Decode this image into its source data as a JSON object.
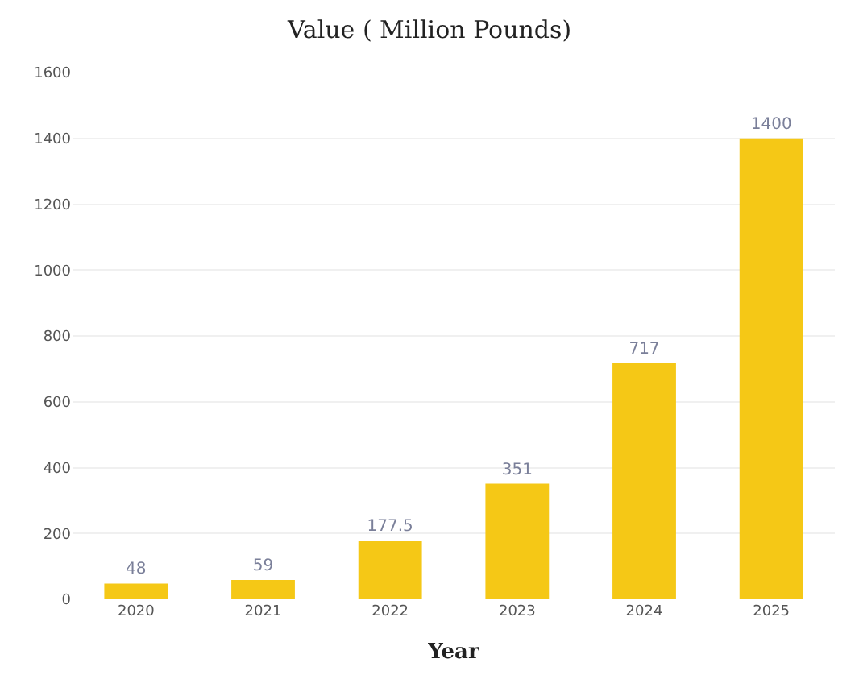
{
  "chart_data": {
    "type": "bar",
    "title": "Value ( Million Pounds)",
    "xlabel": "Year",
    "categories": [
      "2020",
      "2021",
      "2022",
      "2023",
      "2024",
      "2025"
    ],
    "values": [
      48,
      59,
      177.5,
      351,
      717,
      1400
    ],
    "value_labels": [
      "48",
      "59",
      "177.5",
      "351",
      "717",
      "1400"
    ],
    "color": "#f5c816",
    "ylim": [
      0,
      1600
    ],
    "yticks": [
      0,
      200,
      400,
      600,
      800,
      1000,
      1200,
      1400,
      1600
    ],
    "grid": "y"
  }
}
